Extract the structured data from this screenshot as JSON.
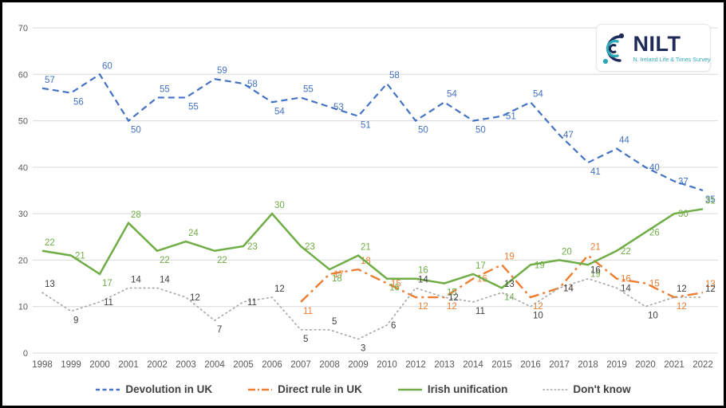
{
  "logo": {
    "title": "NILT",
    "subtitle": "N. Ireland Life & Times Survey",
    "navy": "#1E2B58",
    "teal": "#2FA8B8"
  },
  "chart_data": {
    "type": "line",
    "title": "",
    "xlabel": "",
    "ylabel": "",
    "categories": [
      "1998",
      "1999",
      "2000",
      "2001",
      "2002",
      "2003",
      "2004",
      "2005",
      "2006",
      "2007",
      "2008",
      "2009",
      "2010",
      "2012",
      "2013",
      "2014",
      "2015",
      "2016",
      "2017",
      "2018",
      "2019",
      "2020",
      "2021",
      "2022"
    ],
    "series": [
      {
        "name": "Devolution in UK",
        "color": "#4472C4",
        "line_style": "dashed",
        "values": [
          57,
          56,
          60,
          50,
          55,
          55,
          59,
          58,
          54,
          55,
          53,
          51,
          58,
          50,
          54,
          50,
          51,
          54,
          47,
          41,
          44,
          40,
          37,
          35
        ]
      },
      {
        "name": "Direct rule in UK",
        "color": "#ED7D31",
        "line_style": "dash-dot",
        "values": [
          null,
          null,
          null,
          null,
          null,
          null,
          null,
          null,
          null,
          11,
          17,
          18,
          15,
          12,
          12,
          16,
          19,
          12,
          14,
          21,
          16,
          15,
          12,
          13
        ]
      },
      {
        "name": "Irish unification",
        "color": "#70AD47",
        "line_style": "solid",
        "values": [
          22,
          21,
          17,
          28,
          22,
          24,
          22,
          23,
          30,
          23,
          18,
          21,
          16,
          16,
          15,
          17,
          14,
          19,
          20,
          19,
          22,
          26,
          30,
          31
        ]
      },
      {
        "name": "Don't know",
        "color": "#A6A6A6",
        "label_color": "#404040",
        "line_style": "dotted",
        "values": [
          13,
          9,
          11,
          14,
          14,
          12,
          7,
          11,
          12,
          5,
          5,
          3,
          6,
          14,
          12,
          11,
          13,
          10,
          14,
          16,
          14,
          10,
          12,
          12
        ]
      }
    ],
    "ylim": [
      0,
      70
    ],
    "yticks": [
      0,
      10,
      20,
      30,
      40,
      50,
      60,
      70
    ],
    "grid": true,
    "legend_position": "bottom",
    "axis_color": "#595959",
    "grid_color": "#D9D9D9"
  }
}
